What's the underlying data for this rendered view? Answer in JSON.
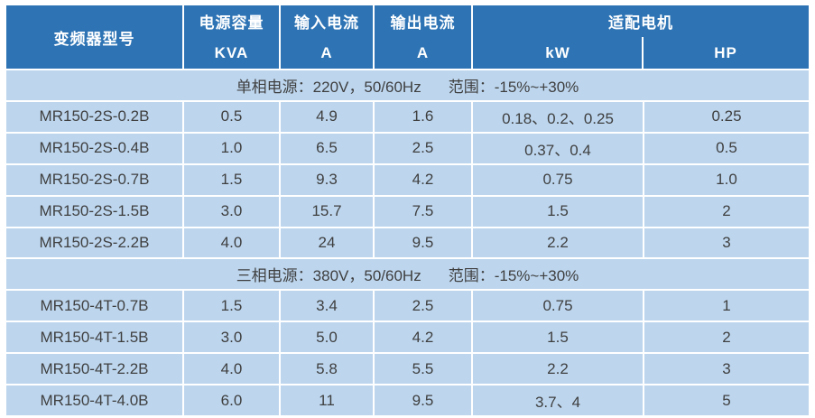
{
  "table": {
    "header": {
      "model": "变频器型号",
      "capacity_title": "电源容量",
      "capacity_unit": "KVA",
      "input_title": "输入电流",
      "input_unit": "A",
      "output_title": "输出电流",
      "output_unit": "A",
      "motor_title": "适配电机",
      "motor_unit_kw": "kW",
      "motor_unit_hp": "HP"
    },
    "sections": [
      {
        "power": "单相电源：220V，50/60Hz",
        "range": "范围：-15%~+30%",
        "rows": [
          {
            "model": "MR150-2S-0.2B",
            "kva": "0.5",
            "input_a": "4.9",
            "output_a": "1.6",
            "kw": "0.18、0.2、0.25",
            "hp": "0.25"
          },
          {
            "model": "MR150-2S-0.4B",
            "kva": "1.0",
            "input_a": "6.5",
            "output_a": "2.5",
            "kw": "0.37、0.4",
            "hp": "0.5"
          },
          {
            "model": "MR150-2S-0.7B",
            "kva": "1.5",
            "input_a": "9.3",
            "output_a": "4.2",
            "kw": "0.75",
            "hp": "1.0"
          },
          {
            "model": "MR150-2S-1.5B",
            "kva": "3.0",
            "input_a": "15.7",
            "output_a": "7.5",
            "kw": "1.5",
            "hp": "2"
          },
          {
            "model": "MR150-2S-2.2B",
            "kva": "4.0",
            "input_a": "24",
            "output_a": "9.5",
            "kw": "2.2",
            "hp": "3"
          }
        ]
      },
      {
        "power": "三相电源：380V，50/60Hz",
        "range": "范围：-15%~+30%",
        "rows": [
          {
            "model": "MR150-4T-0.7B",
            "kva": "1.5",
            "input_a": "3.4",
            "output_a": "2.5",
            "kw": "0.75",
            "hp": "1"
          },
          {
            "model": "MR150-4T-1.5B",
            "kva": "3.0",
            "input_a": "5.0",
            "output_a": "4.2",
            "kw": "1.5",
            "hp": "2"
          },
          {
            "model": "MR150-4T-2.2B",
            "kva": "4.0",
            "input_a": "5.8",
            "output_a": "5.5",
            "kw": "2.2",
            "hp": "3"
          },
          {
            "model": "MR150-4T-4.0B",
            "kva": "6.0",
            "input_a": "11",
            "output_a": "9.5",
            "kw": "3.7、4",
            "hp": "5"
          }
        ]
      }
    ],
    "colors": {
      "header_bg": "#2e74b5",
      "row_bg": "#bdd6ee",
      "gridline": "#ffffff",
      "header_text": "#ffffff",
      "body_text": "#3f3f3f"
    }
  }
}
